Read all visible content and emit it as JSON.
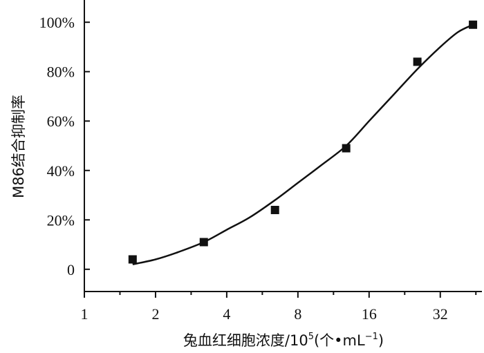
{
  "chart_data": {
    "type": "scatter",
    "title": "",
    "xlabel": {
      "main": "兔血红细胞浓度/10",
      "exp": "5",
      "unit_open": "(个•mL",
      "unit_exp": "−1",
      "unit_close": ")"
    },
    "ylabel": "M86结合抑制率",
    "x_scale": "log2",
    "xlim": [
      1,
      48
    ],
    "ylim": [
      -0.09,
      1.09
    ],
    "x_ticks": [
      1,
      2,
      4,
      8,
      16,
      32
    ],
    "x_tick_labels": [
      "1",
      "2",
      "4",
      "8",
      "16",
      "32"
    ],
    "y_ticks": [
      0,
      0.2,
      0.4,
      0.6,
      0.8,
      1.0
    ],
    "y_tick_labels": [
      "0",
      "20%",
      "40%",
      "60%",
      "80%",
      "100%"
    ],
    "series": [
      {
        "kind": "points",
        "marker": "square",
        "x": [
          1.6,
          3.2,
          6.4,
          12.8,
          25.6,
          44
        ],
        "y": [
          0.04,
          0.11,
          0.24,
          0.49,
          0.84,
          0.99
        ]
      },
      {
        "kind": "fit_curve",
        "x": [
          1.6,
          2,
          2.5,
          3.2,
          4,
          5,
          6.4,
          8,
          10,
          12.8,
          16,
          20,
          25.6,
          32,
          38,
          44
        ],
        "y": [
          0.02,
          0.04,
          0.07,
          0.11,
          0.16,
          0.21,
          0.28,
          0.35,
          0.42,
          0.5,
          0.6,
          0.7,
          0.81,
          0.9,
          0.96,
          0.99
        ]
      }
    ]
  }
}
